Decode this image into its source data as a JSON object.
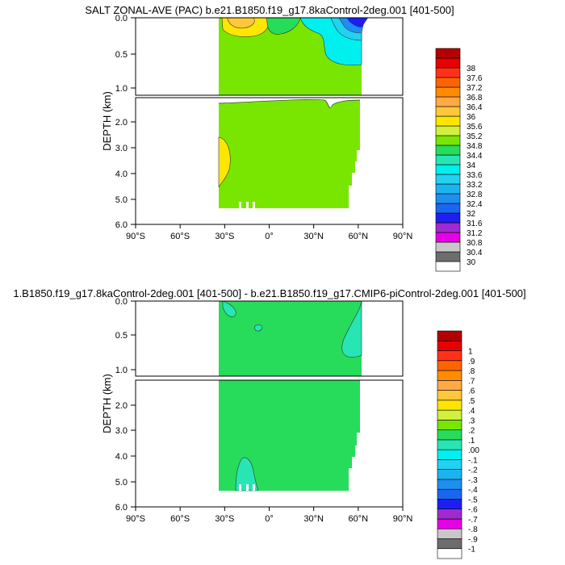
{
  "colors": {
    "salt_ramp": [
      "#ffffff",
      "#6d6d6d",
      "#c8c8c8",
      "#e600e6",
      "#a02ad0",
      "#1e1ef0",
      "#1a66f0",
      "#1e8ff0",
      "#1cb4f0",
      "#22d2f0",
      "#00f0f0",
      "#28e6b4",
      "#26dc5a",
      "#78e600",
      "#d2f03c",
      "#ffe600",
      "#ffc83c",
      "#ffaa46",
      "#ff8c00",
      "#ff6400",
      "#ff3219",
      "#e60000",
      "#b40000"
    ],
    "diff_ramp": [
      "#ffffff",
      "#6d6d6d",
      "#c8c8c8",
      "#e600e6",
      "#a02ad0",
      "#1e1ef0",
      "#1a66f0",
      "#1e8ff0",
      "#1cb4f0",
      "#22d2f0",
      "#00f0f0",
      "#28e6b4",
      "#26dc5a",
      "#78e600",
      "#d2f03c",
      "#ffe600",
      "#ffc83c",
      "#ffaa46",
      "#ff8c00",
      "#ff6400",
      "#ff3219",
      "#e60000",
      "#b40000"
    ]
  },
  "chart_data": [
    {
      "type": "heatmap",
      "title": "SALT ZONAL-AVE (PAC) b.e21.B1850.f19_g17.8kaControl-2deg.001 [401-500]",
      "xlabel": "",
      "ylabel": "DEPTH (km)",
      "x_ticks": [
        "90°S",
        "60°S",
        "30°S",
        "0°",
        "30°N",
        "60°N",
        "90°N"
      ],
      "xlim": [
        -90,
        90
      ],
      "upper_panel_yticks": [
        "0.0",
        "0.5",
        "1.0"
      ],
      "lower_panel_yticks": [
        "2.0",
        "3.0",
        "4.0",
        "5.0",
        "6.0"
      ],
      "ylim": [
        0,
        6
      ],
      "colorbar_labels": [
        "30",
        "30.4",
        "30.8",
        "31.2",
        "31.6",
        "32",
        "32.4",
        "32.8",
        "33.2",
        "33.6",
        "34",
        "34.4",
        "34.8",
        "35.2",
        "35.6",
        "36",
        "36.4",
        "36.8",
        "37.2",
        "37.6",
        "38"
      ],
      "dominant_value_range": [
        34.4,
        34.8
      ]
    },
    {
      "type": "heatmap",
      "title": "1.B1850.f19_g17.8kaControl-2deg.001 [401-500] - b.e21.B1850.f19_g17.CMIP6-piControl-2deg.001 [401-500]",
      "xlabel": "",
      "ylabel": "DEPTH (km)",
      "x_ticks": [
        "90°S",
        "60°S",
        "30°S",
        "0°",
        "30°N",
        "60°N",
        "90°N"
      ],
      "xlim": [
        -90,
        90
      ],
      "upper_panel_yticks": [
        "0.0",
        "0.5",
        "1.0"
      ],
      "lower_panel_yticks": [
        "2.0",
        "3.0",
        "4.0",
        "5.0",
        "6.0"
      ],
      "ylim": [
        0,
        6
      ],
      "colorbar_labels": [
        "-1",
        "-.9",
        "-.8",
        "-.7",
        "-.6",
        "-.5",
        "-.4",
        "-.3",
        "-.2",
        "-.1",
        ".00",
        ".1",
        ".2",
        ".3",
        ".4",
        ".5",
        ".6",
        ".7",
        ".8",
        ".9",
        "1"
      ],
      "dominant_value_range": [
        0.0,
        0.1
      ]
    }
  ]
}
